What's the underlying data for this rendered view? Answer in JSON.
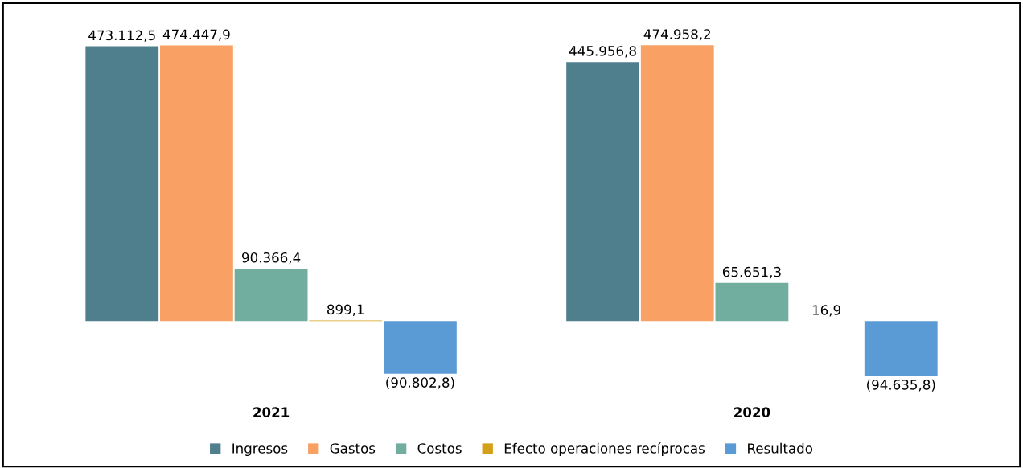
{
  "chart_data": {
    "type": "bar",
    "categories": [
      "2021",
      "2020"
    ],
    "series": [
      {
        "name": "Ingresos",
        "color": "#4f7f8c",
        "values": [
          473112.5,
          445956.8
        ],
        "value_labels": [
          "473.112,5",
          "445.956,8"
        ]
      },
      {
        "name": "Gastos",
        "color": "#f9a064",
        "values": [
          474447.9,
          474958.2
        ],
        "value_labels": [
          "474.447,9",
          "474.958,2"
        ]
      },
      {
        "name": "Costos",
        "color": "#72aea0",
        "values": [
          90366.4,
          65651.3
        ],
        "value_labels": [
          "90.366,4",
          "65.651,3"
        ]
      },
      {
        "name": "Efecto operaciones recíprocas",
        "color": "#d4a017",
        "values": [
          899.1,
          16.9
        ],
        "value_labels": [
          "899,1",
          "16,9"
        ]
      },
      {
        "name": "Resultado",
        "color": "#5b9bd5",
        "values": [
          -90802.8,
          -94635.8
        ],
        "value_labels": [
          "(90.802,8)",
          "(94.635,8)"
        ]
      }
    ],
    "legend": "bottom",
    "grid": false
  }
}
